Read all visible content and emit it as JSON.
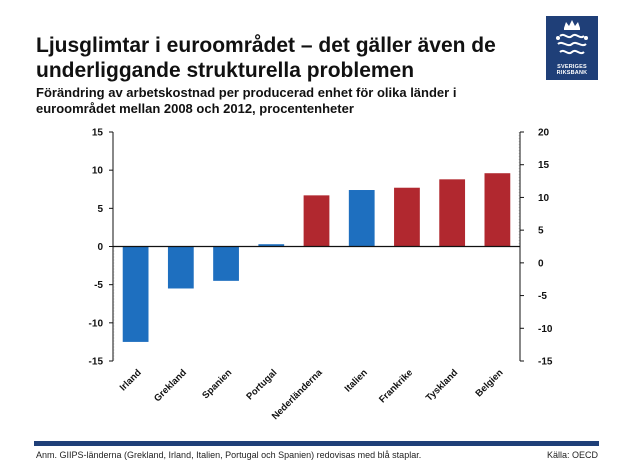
{
  "header": {
    "title_line1": "Ljusglimtar i euroområdet – det gäller även de",
    "title_line2": "underliggande strukturella problemen",
    "subtitle_line1": "Förändring av arbetskostnad per producerad enhet för olika länder i",
    "subtitle_line2": "euroområdet mellan 2008 och 2012, procentenheter"
  },
  "logo": {
    "text_line1": "SVERIGES",
    "text_line2": "RIKSBANK"
  },
  "footer": {
    "note": "Anm. GIIPS-länderna (Grekland, Irland, Italien, Portugal och Spanien) redovisas med blå staplar.",
    "source": "Källa: OECD"
  },
  "colors": {
    "blue": "#1e6fbf",
    "red": "#b1282f",
    "frame": "#1f3f78"
  },
  "chart_data": {
    "type": "bar",
    "title": "Ljusglimtar i euroområdet – det gäller även de underliggande strukturella problemen",
    "subtitle": "Förändring av arbetskostnad per producerad enhet för olika länder i euroområdet mellan 2008 och 2012, procentenheter",
    "categories": [
      "Irland",
      "Grekland",
      "Spanien",
      "Portugal",
      "Nederländerna",
      "Italien",
      "Frankrike",
      "Tyskland",
      "Belgien"
    ],
    "values": [
      -12.5,
      -5.5,
      -4.5,
      0.3,
      6.7,
      7.4,
      7.7,
      8.8,
      9.6
    ],
    "bar_colors": [
      "blue",
      "blue",
      "blue",
      "blue",
      "red",
      "blue",
      "red",
      "red",
      "red"
    ],
    "ylim_left": [
      -15,
      15
    ],
    "yticks_left": [
      15,
      10,
      5,
      0,
      -5,
      -10,
      -15
    ],
    "ylim_right": [
      -15,
      20
    ],
    "yticks_right": [
      20,
      15,
      10,
      5,
      0,
      -5,
      -10,
      -15
    ],
    "xlabel": "",
    "ylabel": "",
    "grid": false
  }
}
